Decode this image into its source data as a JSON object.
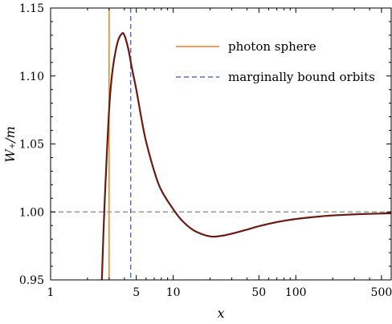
{
  "chart_data": {
    "type": "line",
    "title": "",
    "xlabel": "x",
    "ylabel": "W₊/m",
    "xscale": "log",
    "xlim": [
      1,
      600
    ],
    "ylim": [
      0.95,
      1.15
    ],
    "xticks": [
      1,
      5,
      10,
      50,
      100,
      500
    ],
    "xtick_labels": [
      "1",
      "5",
      "10",
      "50",
      "100",
      "500"
    ],
    "yticks": [
      0.95,
      1.0,
      1.05,
      1.1,
      1.15
    ],
    "ytick_labels": [
      "0.95",
      "1.00",
      "1.05",
      "1.10",
      "1.15"
    ],
    "grid": false,
    "legend_position": "top-right",
    "series": [
      {
        "color": "#6b1a12",
        "style": "solid",
        "x": [
          2.62,
          2.7,
          2.8,
          3.0,
          3.2,
          3.5,
          3.8,
          4.0,
          4.3,
          4.6,
          5.0,
          5.5,
          6.0,
          7.0,
          8.0,
          10.0,
          12.0,
          15.0,
          20.0,
          25.0,
          30.0,
          40.0,
          50.0,
          70.0,
          100.0,
          150.0,
          200.0,
          300.0,
          400.0,
          600.0
        ],
        "y": [
          0.95,
          0.985,
          1.02,
          1.075,
          1.104,
          1.124,
          1.131,
          1.13,
          1.12,
          1.106,
          1.09,
          1.069,
          1.052,
          1.03,
          1.016,
          1.002,
          0.993,
          0.986,
          0.982,
          0.9825,
          0.984,
          0.987,
          0.9895,
          0.9925,
          0.9948,
          0.9965,
          0.9974,
          0.9982,
          0.9986,
          0.999
        ]
      }
    ],
    "reference_lines": [
      {
        "name": "photon sphere",
        "orientation": "vertical",
        "value": 3.0,
        "color": "#f07f1a",
        "style": "solid"
      },
      {
        "name": "marginally bound orbits",
        "orientation": "vertical",
        "value": 4.5,
        "color": "#5a6fc0",
        "style": "dashed"
      },
      {
        "orientation": "horizontal",
        "value": 1.0,
        "color": "#999999",
        "style": "dashed"
      }
    ]
  }
}
